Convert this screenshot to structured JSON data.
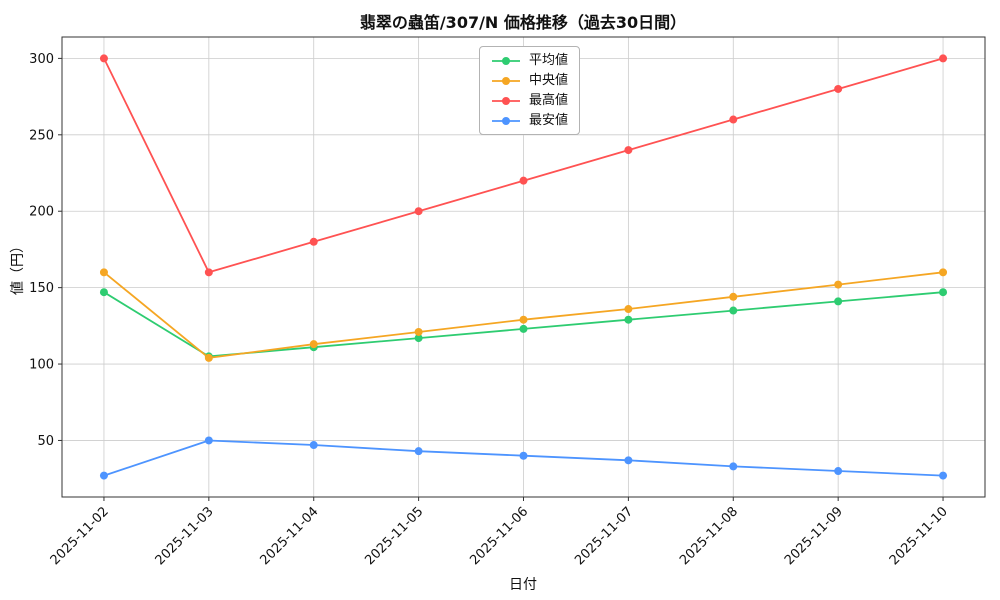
{
  "figure": {
    "background": "#ffffff",
    "axes_border_color": "#333333",
    "text_color": "#111111"
  },
  "chart_data": {
    "type": "line",
    "title": "翡翠の蟲笛/307/N 価格推移（過去30日間）",
    "xlabel": "日付",
    "ylabel": "値（円）",
    "categories": [
      "2025-11-02",
      "2025-11-03",
      "2025-11-04",
      "2025-11-05",
      "2025-11-06",
      "2025-11-07",
      "2025-11-08",
      "2025-11-09",
      "2025-11-10"
    ],
    "series": [
      {
        "name": "平均値",
        "color": "#2ecc71",
        "values": [
          147,
          105,
          111,
          117,
          123,
          129,
          135,
          141,
          147
        ]
      },
      {
        "name": "中央値",
        "color": "#f5a623",
        "values": [
          160,
          104,
          113,
          121,
          129,
          136,
          144,
          152,
          160
        ]
      },
      {
        "name": "最高値",
        "color": "#ff5252",
        "values": [
          300,
          160,
          180,
          200,
          220,
          240,
          260,
          280,
          300
        ]
      },
      {
        "name": "最安値",
        "color": "#4d94ff",
        "values": [
          27,
          50,
          47,
          43,
          40,
          37,
          33,
          30,
          27
        ]
      }
    ],
    "yticks": [
      50,
      100,
      150,
      200,
      250,
      300
    ],
    "ylim": [
      13,
      314
    ],
    "xlim": [
      -0.4,
      8.4
    ],
    "grid": true,
    "grid_color": "#cccccc",
    "legend_position": "upper center",
    "marker": "circle",
    "tick_rotation_deg": 45
  }
}
